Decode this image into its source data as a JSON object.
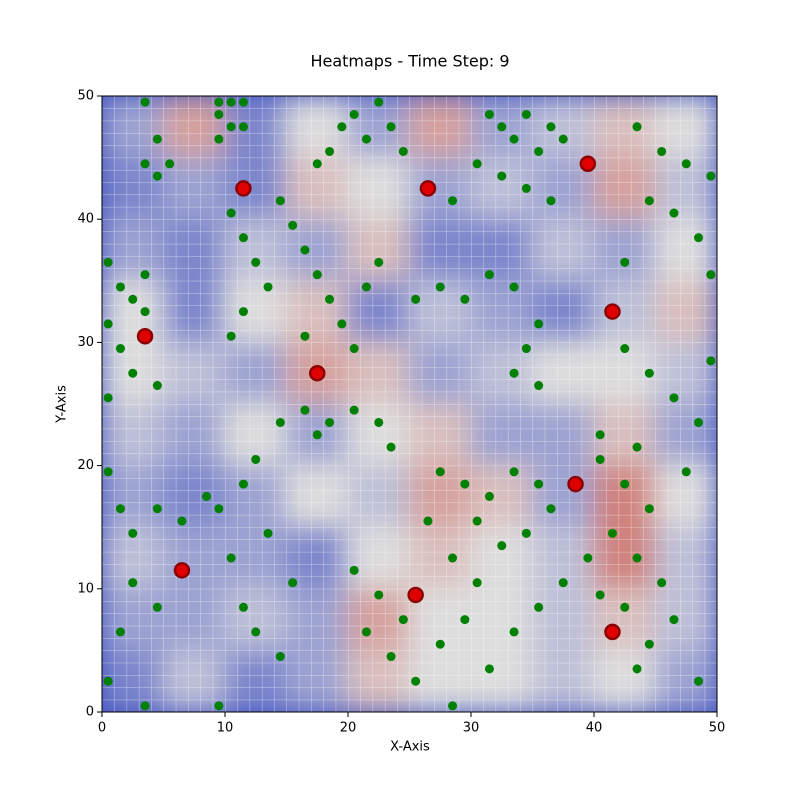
{
  "chart_data": {
    "type": "heatmap_scatter",
    "title": "Heatmaps - Time Step: 9",
    "xlabel": "X-Axis",
    "ylabel": "Y-Axis",
    "xlim": [
      0,
      50
    ],
    "ylim": [
      0,
      50
    ],
    "xticks": [
      0,
      10,
      20,
      30,
      40,
      50
    ],
    "yticks": [
      0,
      10,
      20,
      30,
      40,
      50
    ],
    "heat": [
      [
        0.3,
        0.7,
        0.2,
        0.5,
        0.3,
        0.7,
        0.3,
        0.4,
        0.6,
        0.5
      ],
      [
        0.2,
        0.3,
        0.2,
        0.6,
        0.5,
        0.3,
        0.4,
        0.3,
        0.7,
        0.4
      ],
      [
        0.3,
        0.2,
        0.4,
        0.3,
        0.6,
        0.2,
        0.2,
        0.4,
        0.3,
        0.5
      ],
      [
        0.5,
        0.2,
        0.5,
        0.6,
        0.2,
        0.4,
        0.3,
        0.2,
        0.4,
        0.6
      ],
      [
        0.5,
        0.4,
        0.3,
        0.7,
        0.6,
        0.3,
        0.4,
        0.5,
        0.5,
        0.4
      ],
      [
        0.4,
        0.3,
        0.5,
        0.3,
        0.5,
        0.6,
        0.3,
        0.3,
        0.6,
        0.3
      ],
      [
        0.3,
        0.2,
        0.3,
        0.5,
        0.4,
        0.7,
        0.6,
        0.3,
        0.8,
        0.5
      ],
      [
        0.4,
        0.3,
        0.3,
        0.2,
        0.5,
        0.6,
        0.5,
        0.4,
        0.8,
        0.4
      ],
      [
        0.3,
        0.3,
        0.4,
        0.3,
        0.7,
        0.5,
        0.5,
        0.4,
        0.6,
        0.4
      ],
      [
        0.2,
        0.4,
        0.2,
        0.3,
        0.6,
        0.5,
        0.5,
        0.4,
        0.5,
        0.3
      ]
    ],
    "series": [
      {
        "color": "#008000",
        "size": 4.5,
        "x": [
          9.5,
          10.5,
          11.5,
          9.5,
          10.5,
          11.5,
          9.5,
          3.5,
          4.5,
          3.5,
          5.5,
          4.5,
          19.5,
          20.5,
          21.5,
          22.5,
          23.5,
          24.5,
          18.5,
          17.5,
          31.5,
          32.5,
          33.5,
          34.5,
          35.5,
          36.5,
          37.5,
          32.5,
          34.5,
          36.5,
          30.5,
          28.5,
          43.5,
          45.5,
          47.5,
          49.5,
          44.5,
          46.5,
          48.5,
          42.5,
          49.5,
          0.5,
          1.5,
          2.5,
          3.5,
          0.5,
          1.5,
          2.5,
          4.5,
          0.5,
          3.5,
          10.5,
          11.5,
          12.5,
          13.5,
          11.5,
          10.5,
          15.5,
          14.5,
          16.5,
          17.5,
          18.5,
          19.5,
          21.5,
          22.5,
          20.5,
          16.5,
          25.5,
          27.5,
          29.5,
          31.5,
          33.5,
          35.5,
          34.5,
          33.5,
          35.5,
          42.5,
          44.5,
          46.5,
          48.5,
          49.5,
          40.5,
          43.5,
          47.5,
          16.5,
          17.5,
          18.5,
          20.5,
          22.5,
          23.5,
          14.5,
          12.5,
          27.5,
          29.5,
          31.5,
          33.5,
          35.5,
          30.5,
          32.5,
          34.5,
          36.5,
          28.5,
          26.5,
          40.5,
          42.5,
          44.5,
          41.5,
          43.5,
          45.5,
          40.5,
          42.5,
          44.5,
          46.5,
          43.5,
          48.5,
          39.5,
          37.5,
          20.5,
          22.5,
          24.5,
          21.5,
          23.5,
          25.5,
          27.5,
          29.5,
          31.5,
          30.5,
          28.5,
          33.5,
          35.5,
          0.5,
          1.5,
          2.5,
          4.5,
          6.5,
          8.5,
          9.5,
          11.5,
          13.5,
          10.5,
          2.5,
          4.5,
          1.5,
          0.5,
          3.5,
          11.5,
          12.5,
          14.5,
          9.5,
          15.5
        ],
        "y": [
          49.5,
          49.5,
          49.5,
          48.5,
          47.5,
          47.5,
          46.5,
          49.5,
          46.5,
          44.5,
          44.5,
          43.5,
          47.5,
          48.5,
          46.5,
          49.5,
          47.5,
          45.5,
          45.5,
          44.5,
          48.5,
          47.5,
          46.5,
          48.5,
          45.5,
          47.5,
          46.5,
          43.5,
          42.5,
          41.5,
          44.5,
          41.5,
          47.5,
          45.5,
          44.5,
          43.5,
          41.5,
          40.5,
          38.5,
          36.5,
          35.5,
          36.5,
          34.5,
          33.5,
          32.5,
          31.5,
          29.5,
          27.5,
          26.5,
          25.5,
          35.5,
          40.5,
          38.5,
          36.5,
          34.5,
          32.5,
          30.5,
          39.5,
          41.5,
          37.5,
          35.5,
          33.5,
          31.5,
          34.5,
          36.5,
          29.5,
          30.5,
          33.5,
          34.5,
          33.5,
          35.5,
          34.5,
          31.5,
          29.5,
          27.5,
          26.5,
          29.5,
          27.5,
          25.5,
          23.5,
          28.5,
          22.5,
          21.5,
          19.5,
          24.5,
          22.5,
          23.5,
          24.5,
          23.5,
          21.5,
          23.5,
          20.5,
          19.5,
          18.5,
          17.5,
          19.5,
          18.5,
          15.5,
          13.5,
          14.5,
          16.5,
          12.5,
          15.5,
          20.5,
          18.5,
          16.5,
          14.5,
          12.5,
          10.5,
          9.5,
          8.5,
          5.5,
          7.5,
          3.5,
          2.5,
          12.5,
          10.5,
          11.5,
          9.5,
          7.5,
          6.5,
          4.5,
          2.5,
          5.5,
          7.5,
          3.5,
          10.5,
          0.5,
          6.5,
          8.5,
          19.5,
          16.5,
          14.5,
          16.5,
          15.5,
          17.5,
          16.5,
          18.5,
          14.5,
          12.5,
          10.5,
          8.5,
          6.5,
          2.5,
          0.5,
          8.5,
          6.5,
          4.5,
          0.5,
          10.5
        ]
      },
      {
        "color": "#e00000",
        "size": 7,
        "x": [
          3.5,
          6.5,
          11.5,
          17.5,
          25.5,
          26.5,
          38.5,
          39.5,
          41.5,
          41.5
        ],
        "y": [
          30.5,
          11.5,
          42.5,
          27.5,
          9.5,
          42.5,
          18.5,
          44.5,
          32.5,
          6.5
        ]
      }
    ]
  }
}
